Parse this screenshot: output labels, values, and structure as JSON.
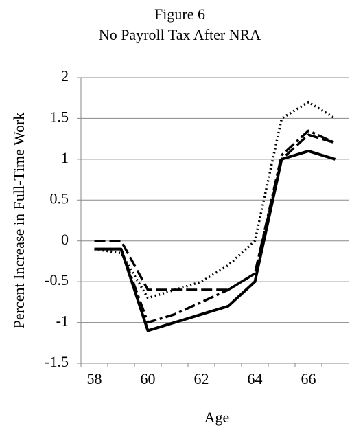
{
  "chart_data": {
    "type": "line",
    "title": "Figure 6",
    "subtitle": "No Payroll Tax After NRA",
    "x_label": "Age",
    "y_label": "Percent Increase in Full-Time Work",
    "categories": [
      "58",
      null,
      "60",
      null,
      "62",
      null,
      "64",
      null,
      "66",
      null
    ],
    "series": [
      {
        "color": "#000000",
        "dash": "solid",
        "values": [
          -0.1,
          -0.1,
          -1.1,
          -1.0,
          -0.9,
          -0.8,
          -0.5,
          1.0,
          1.1,
          1.0
        ]
      },
      {
        "color": "#000000",
        "dash": "dashed",
        "values": [
          0,
          0,
          -0.6,
          -0.6,
          -0.6,
          -0.6,
          -0.4,
          1.0,
          1.3,
          1.2
        ]
      },
      {
        "color": "#000000",
        "dash": "dashdot",
        "values": [
          -0.1,
          -0.1,
          -1.0,
          -0.9,
          -0.75,
          -0.6,
          -0.4,
          1.05,
          1.35,
          1.2
        ]
      },
      {
        "color": "#000000",
        "dash": "dotted",
        "values": [
          -0.1,
          -0.15,
          -0.7,
          -0.6,
          -0.5,
          -0.3,
          0,
          1.5,
          1.7,
          1.5
        ]
      }
    ],
    "ylim": [
      -1.5,
      2
    ],
    "yticks": [
      -1.5,
      -1,
      -0.5,
      0,
      0.5,
      1,
      1.5,
      2
    ],
    "grid": true
  }
}
